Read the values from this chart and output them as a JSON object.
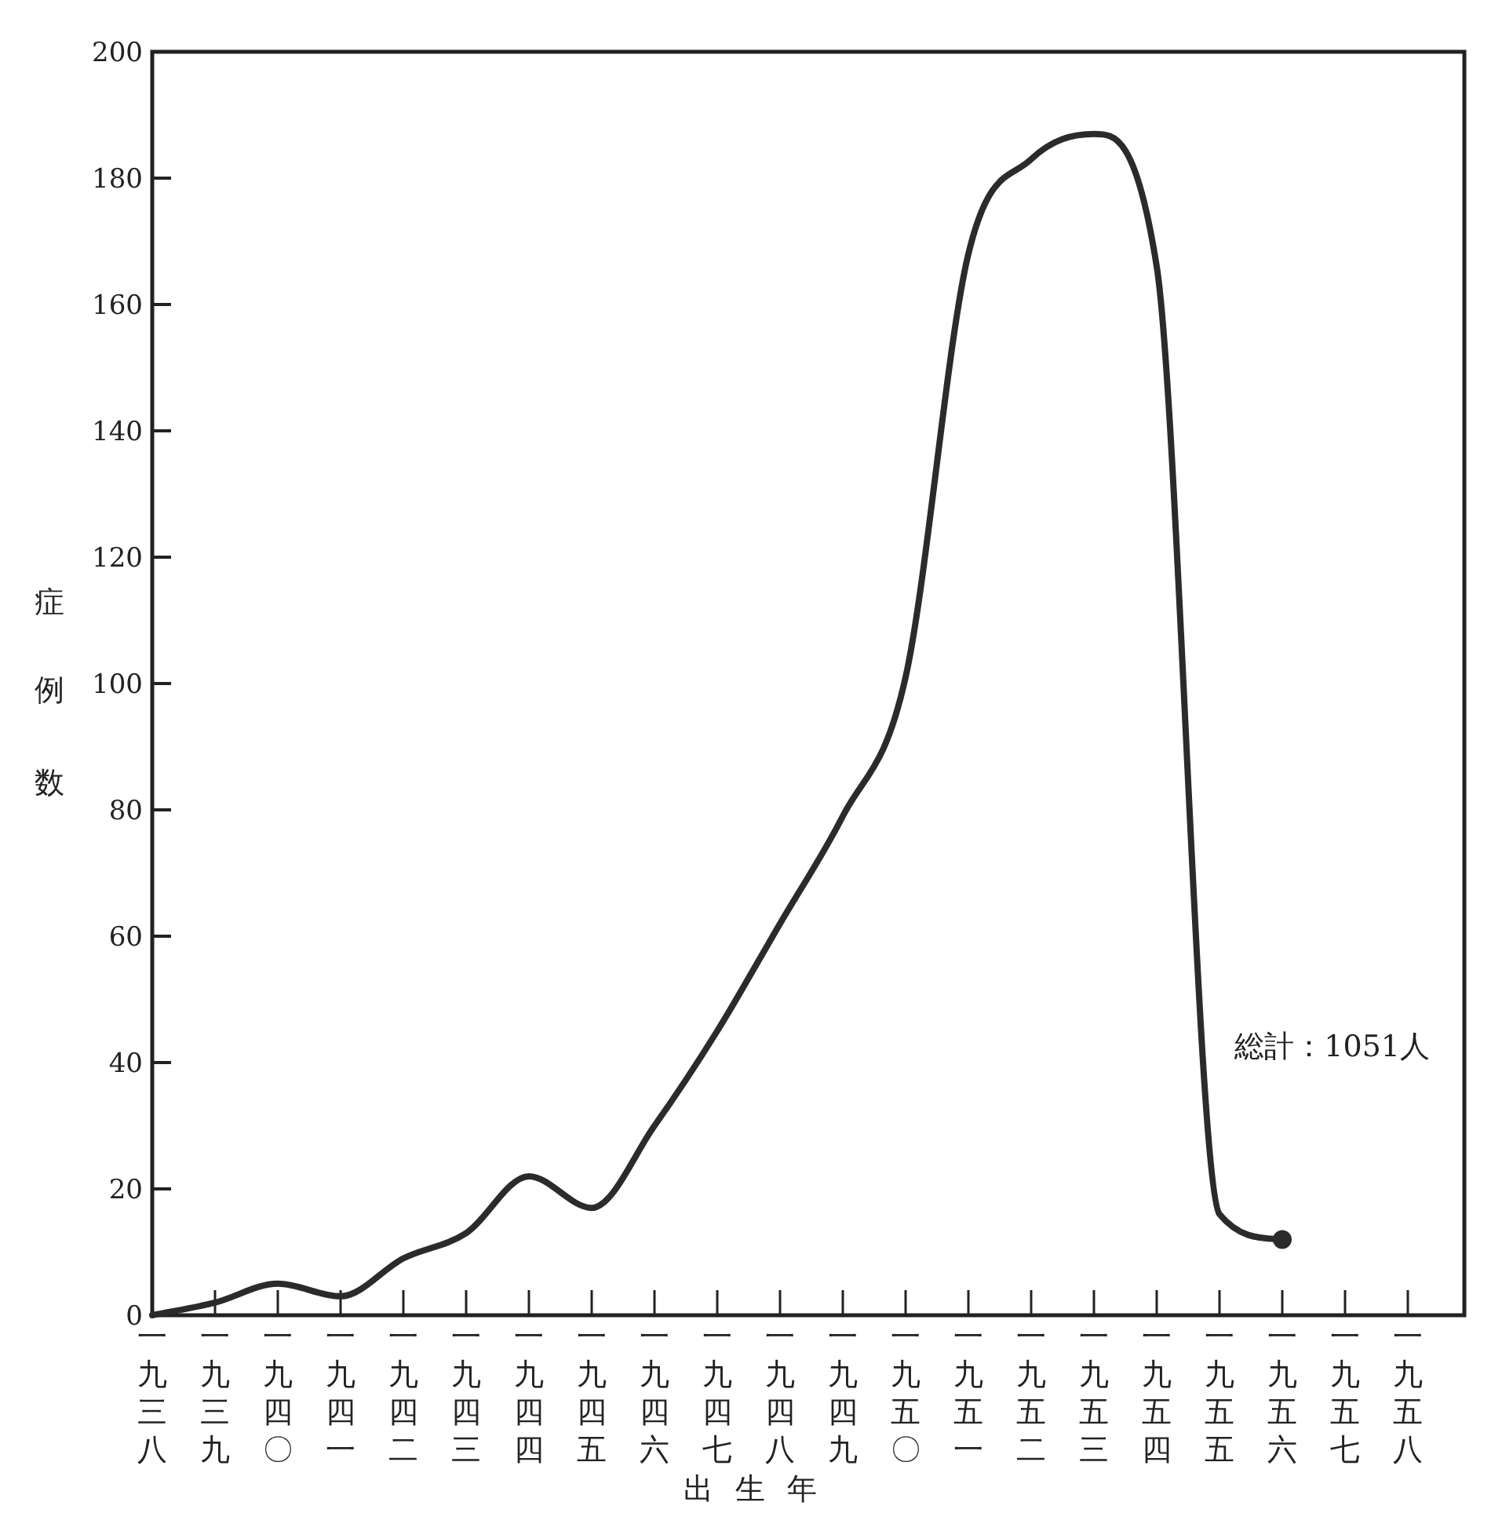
{
  "chart_data": {
    "type": "line",
    "xlabel": "出生年",
    "ylabel": "症例数",
    "categories": [
      "一九三八",
      "一九三九",
      "一九四〇",
      "一九四一",
      "一九四二",
      "一九四三",
      "一九四四",
      "一九四五",
      "一九四六",
      "一九四七",
      "一九四八",
      "一九四九",
      "一九五〇",
      "一九五一",
      "一九五二",
      "一九五三",
      "一九五四",
      "一九五五",
      "一九五六",
      "一九五七",
      "一九五八"
    ],
    "series": [
      {
        "color": "#2b2b2b",
        "line_style": "solid",
        "marker": "none",
        "values": [
          0,
          2,
          5,
          3,
          9,
          13,
          22,
          17,
          30,
          45,
          62,
          79,
          101,
          168,
          183,
          187,
          166,
          16,
          12,
          null,
          null
        ]
      },
      {
        "type": "scatter",
        "color": "#2b2b2b",
        "marker": "circle",
        "values": [
          null,
          null,
          null,
          null,
          null,
          null,
          null,
          null,
          null,
          null,
          null,
          null,
          null,
          null,
          null,
          null,
          null,
          null,
          12,
          null,
          null
        ]
      }
    ],
    "ylim": [
      0,
      200
    ],
    "yticks": [
      0,
      20,
      40,
      60,
      80,
      100,
      120,
      140,
      160,
      180,
      200
    ],
    "grid": false,
    "annotations": [
      "総計：1051人"
    ]
  }
}
